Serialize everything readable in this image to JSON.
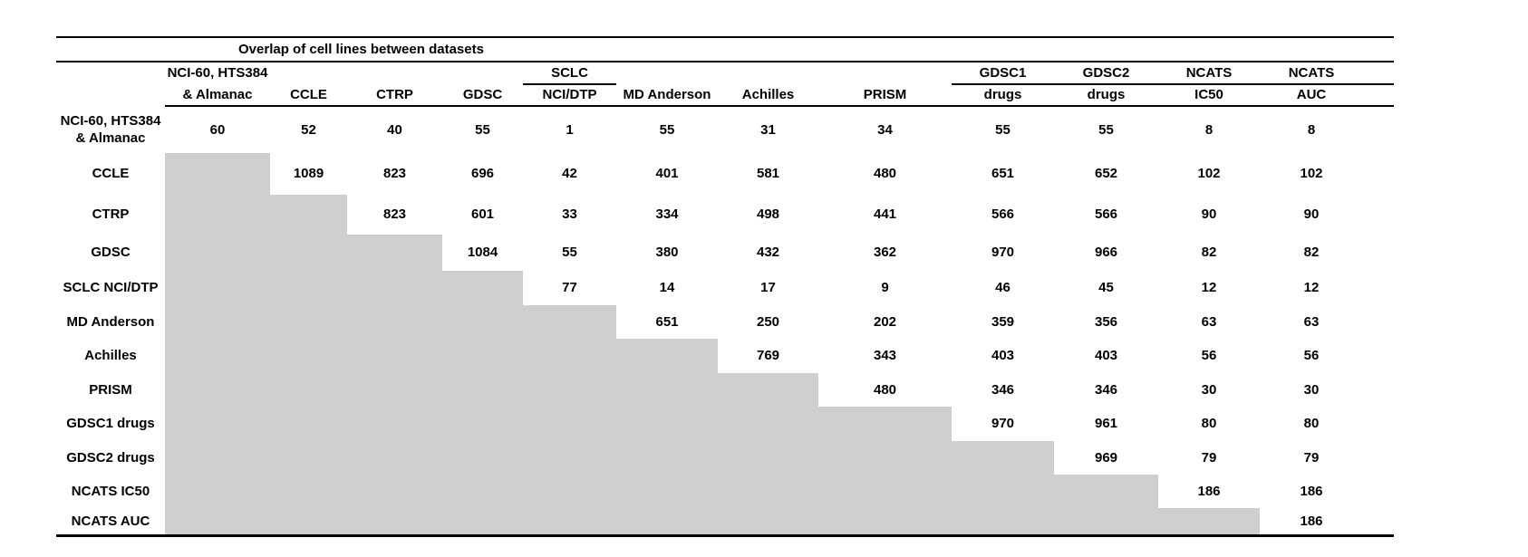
{
  "table": {
    "title": "Overlap of cell lines between datasets",
    "columns": [
      {
        "key": "nci60",
        "top": "NCI-60, HTS384",
        "bottom": "& Almanac",
        "group_rule": false,
        "align": "left"
      },
      {
        "key": "ccle",
        "top": "",
        "bottom": "CCLE",
        "group_rule": false
      },
      {
        "key": "ctrp",
        "top": "",
        "bottom": "CTRP",
        "group_rule": false
      },
      {
        "key": "gdsc",
        "top": "",
        "bottom": "GDSC",
        "group_rule": false
      },
      {
        "key": "sclc",
        "top": "SCLC",
        "bottom": "NCI/DTP",
        "group_rule": true
      },
      {
        "key": "mdanderson",
        "top": "",
        "bottom": "MD Anderson",
        "group_rule": false
      },
      {
        "key": "achilles",
        "top": "",
        "bottom": "Achilles",
        "group_rule": false
      },
      {
        "key": "prism",
        "top": "",
        "bottom": "PRISM",
        "group_rule": false
      },
      {
        "key": "gdsc1drugs",
        "top": "GDSC1",
        "bottom": "drugs",
        "group_rule": true
      },
      {
        "key": "gdsc2drugs",
        "top": "GDSC2",
        "bottom": "drugs",
        "group_rule": true
      },
      {
        "key": "ncatsic50",
        "top": "NCATS",
        "bottom": "IC50",
        "group_rule": true
      },
      {
        "key": "ncatsauc",
        "top": "NCATS",
        "bottom": "AUC",
        "group_rule": true
      }
    ],
    "rows": [
      {
        "key": "nci60",
        "label_lines": [
          "NCI-60, HTS384",
          "& Almanac"
        ],
        "values": [
          "60",
          "52",
          "40",
          "55",
          "1",
          "55",
          "31",
          "34",
          "55",
          "55",
          "8",
          "8"
        ]
      },
      {
        "key": "ccle",
        "label_lines": [
          "CCLE"
        ],
        "values": [
          null,
          "1089",
          "823",
          "696",
          "42",
          "401",
          "581",
          "480",
          "651",
          "652",
          "102",
          "102"
        ]
      },
      {
        "key": "ctrp",
        "label_lines": [
          "CTRP"
        ],
        "values": [
          null,
          null,
          "823",
          "601",
          "33",
          "334",
          "498",
          "441",
          "566",
          "566",
          "90",
          "90"
        ]
      },
      {
        "key": "gdsc",
        "label_lines": [
          "GDSC"
        ],
        "values": [
          null,
          null,
          null,
          "1084",
          "55",
          "380",
          "432",
          "362",
          "970",
          "966",
          "82",
          "82"
        ]
      },
      {
        "key": "sclc",
        "label_lines": [
          "SCLC NCI/DTP"
        ],
        "values": [
          null,
          null,
          null,
          null,
          "77",
          "14",
          "17",
          "9",
          "46",
          "45",
          "12",
          "12"
        ]
      },
      {
        "key": "mdanderson",
        "label_lines": [
          "MD Anderson"
        ],
        "values": [
          null,
          null,
          null,
          null,
          null,
          "651",
          "250",
          "202",
          "359",
          "356",
          "63",
          "63"
        ]
      },
      {
        "key": "achilles",
        "label_lines": [
          "Achilles"
        ],
        "values": [
          null,
          null,
          null,
          null,
          null,
          null,
          "769",
          "343",
          "403",
          "403",
          "56",
          "56"
        ]
      },
      {
        "key": "prism",
        "label_lines": [
          "PRISM"
        ],
        "values": [
          null,
          null,
          null,
          null,
          null,
          null,
          null,
          "480",
          "346",
          "346",
          "30",
          "30"
        ]
      },
      {
        "key": "gdsc1drugs",
        "label_lines": [
          "GDSC1 drugs"
        ],
        "values": [
          null,
          null,
          null,
          null,
          null,
          null,
          null,
          null,
          "970",
          "961",
          "80",
          "80"
        ]
      },
      {
        "key": "gdsc2drugs",
        "label_lines": [
          "GDSC2 drugs"
        ],
        "values": [
          null,
          null,
          null,
          null,
          null,
          null,
          null,
          null,
          null,
          "969",
          "79",
          "79"
        ]
      },
      {
        "key": "ncatsic50",
        "label_lines": [
          "NCATS IC50"
        ],
        "values": [
          null,
          null,
          null,
          null,
          null,
          null,
          null,
          null,
          null,
          null,
          "186",
          "186"
        ]
      },
      {
        "key": "ncatsauc",
        "label_lines": [
          "NCATS AUC"
        ],
        "values": [
          null,
          null,
          null,
          null,
          null,
          null,
          null,
          null,
          null,
          null,
          null,
          "186"
        ]
      }
    ]
  },
  "colors": {
    "cell_shade": "#cfcfcf",
    "rule": "#000000",
    "text": "#000000",
    "page_background": "#ffffff"
  }
}
